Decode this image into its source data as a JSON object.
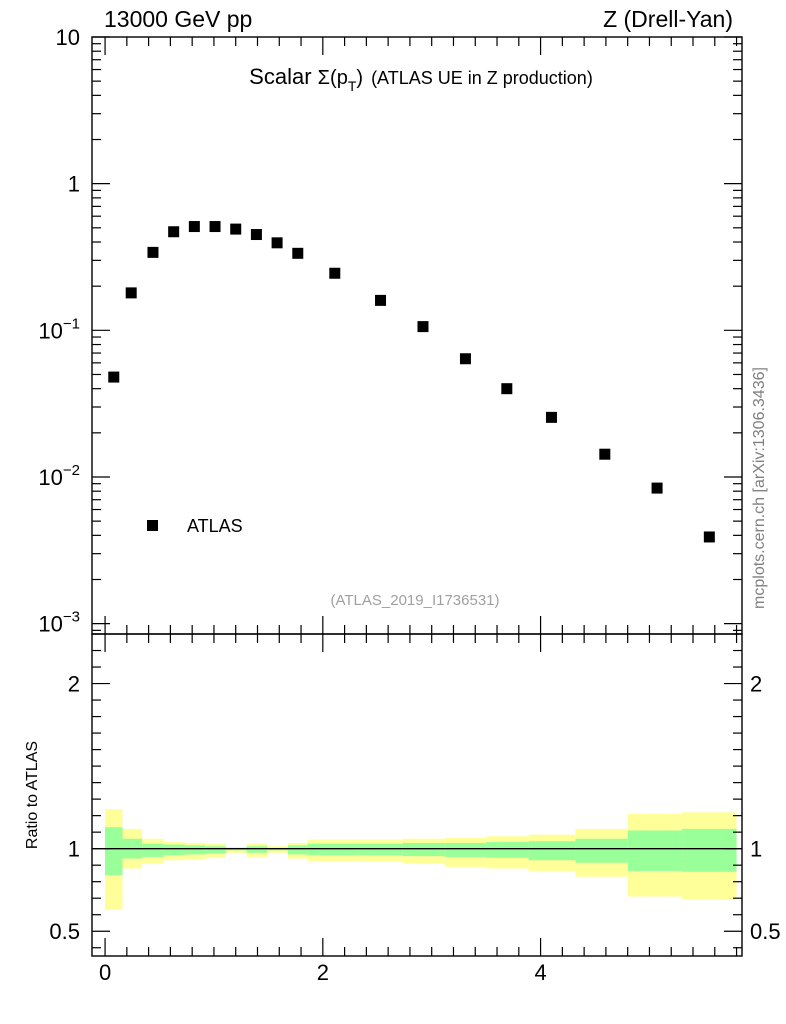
{
  "header": {
    "left": "13000 GeV pp",
    "right": "Z (Drell-Yan)"
  },
  "side_label": "mcplots.cern.ch [arXiv:1306.3436]",
  "chart_data": [
    {
      "type": "scatter",
      "title_parts": {
        "a": "Scalar ",
        "sigma": "Σ",
        "open": "(p",
        "sub": "T",
        "close": ")",
        "rest": "(ATLAS UE in Z production)"
      },
      "analysis_label": "(ATLAS_2019_I1736531)",
      "y_scale": "log",
      "ylim": [
        0.00085,
        10
      ],
      "xlim": [
        -0.12,
        5.85
      ],
      "y_ticks": [
        {
          "value": 10,
          "base": "10",
          "exp": ""
        },
        {
          "value": 1,
          "base": "1",
          "exp": ""
        },
        {
          "value": 0.1,
          "base": "10",
          "exp": "−1"
        },
        {
          "value": 0.01,
          "base": "10",
          "exp": "−2"
        },
        {
          "value": 0.001,
          "base": "10",
          "exp": "−3"
        }
      ],
      "legend": {
        "entries": [
          "ATLAS"
        ],
        "placement": "bottom-left"
      },
      "series": [
        {
          "name": "ATLAS",
          "color": "#000000",
          "x": [
            0.08,
            0.24,
            0.44,
            0.63,
            0.82,
            1.01,
            1.2,
            1.39,
            1.58,
            1.77,
            2.11,
            2.53,
            2.92,
            3.31,
            3.69,
            4.1,
            4.59,
            5.07,
            5.55
          ],
          "y": [
            0.048,
            0.18,
            0.34,
            0.47,
            0.51,
            0.51,
            0.49,
            0.45,
            0.395,
            0.335,
            0.245,
            0.16,
            0.106,
            0.064,
            0.04,
            0.0255,
            0.0143,
            0.0084,
            0.0039
          ]
        }
      ]
    },
    {
      "type": "area",
      "ylabel": "Ratio to ATLAS",
      "ylim": [
        0.35,
        2.3
      ],
      "y_ticks": [
        {
          "value": 0.5,
          "label": "0.5"
        },
        {
          "value": 1,
          "label": "1"
        },
        {
          "value": 2,
          "label": "2"
        }
      ],
      "x_ticks": [
        {
          "value": 0,
          "label": "0"
        },
        {
          "value": 2,
          "label": "2"
        },
        {
          "value": 4,
          "label": "4"
        }
      ],
      "reference": 1,
      "colors": {
        "outer_band": "#ffff99",
        "inner_band": "#99ff99",
        "line": "#000000"
      },
      "bins": [
        {
          "x0": 0.0,
          "x1": 0.16,
          "outer": [
            0.63,
            1.24
          ],
          "inner": [
            0.84,
            1.13
          ]
        },
        {
          "x0": 0.16,
          "x1": 0.34,
          "outer": [
            0.88,
            1.12
          ],
          "inner": [
            0.94,
            1.06
          ]
        },
        {
          "x0": 0.34,
          "x1": 0.54,
          "outer": [
            0.91,
            1.06
          ],
          "inner": [
            0.95,
            1.03
          ]
        },
        {
          "x0": 0.54,
          "x1": 0.73,
          "outer": [
            0.93,
            1.04
          ],
          "inner": [
            0.96,
            1.025
          ]
        },
        {
          "x0": 0.73,
          "x1": 0.92,
          "outer": [
            0.935,
            1.035
          ],
          "inner": [
            0.965,
            1.02
          ]
        },
        {
          "x0": 0.92,
          "x1": 1.11,
          "outer": [
            0.945,
            1.03
          ],
          "inner": [
            0.97,
            1.015
          ]
        },
        {
          "x0": 1.11,
          "x1": 1.3,
          "outer": [
            0.975,
            1.01
          ],
          "inner": [
            0.99,
            1.005
          ]
        },
        {
          "x0": 1.3,
          "x1": 1.49,
          "outer": [
            0.95,
            1.03
          ],
          "inner": [
            0.975,
            1.015
          ]
        },
        {
          "x0": 1.49,
          "x1": 1.68,
          "outer": [
            0.975,
            1.015
          ],
          "inner": [
            0.99,
            1.005
          ]
        },
        {
          "x0": 1.68,
          "x1": 1.86,
          "outer": [
            0.94,
            1.035
          ],
          "inner": [
            0.965,
            1.02
          ]
        },
        {
          "x0": 1.86,
          "x1": 2.33,
          "outer": [
            0.925,
            1.055
          ],
          "inner": [
            0.96,
            1.03
          ]
        },
        {
          "x0": 2.33,
          "x1": 2.73,
          "outer": [
            0.92,
            1.055
          ],
          "inner": [
            0.96,
            1.03
          ]
        },
        {
          "x0": 2.73,
          "x1": 3.12,
          "outer": [
            0.91,
            1.06
          ],
          "inner": [
            0.955,
            1.035
          ]
        },
        {
          "x0": 3.12,
          "x1": 3.5,
          "outer": [
            0.89,
            1.065
          ],
          "inner": [
            0.95,
            1.035
          ]
        },
        {
          "x0": 3.5,
          "x1": 3.89,
          "outer": [
            0.88,
            1.075
          ],
          "inner": [
            0.945,
            1.04
          ]
        },
        {
          "x0": 3.89,
          "x1": 4.32,
          "outer": [
            0.865,
            1.085
          ],
          "inner": [
            0.93,
            1.045
          ]
        },
        {
          "x0": 4.32,
          "x1": 4.8,
          "outer": [
            0.83,
            1.12
          ],
          "inner": [
            0.915,
            1.06
          ]
        },
        {
          "x0": 4.8,
          "x1": 5.3,
          "outer": [
            0.71,
            1.21
          ],
          "inner": [
            0.865,
            1.11
          ]
        },
        {
          "x0": 5.3,
          "x1": 5.8,
          "outer": [
            0.69,
            1.22
          ],
          "inner": [
            0.86,
            1.12
          ]
        }
      ]
    }
  ]
}
